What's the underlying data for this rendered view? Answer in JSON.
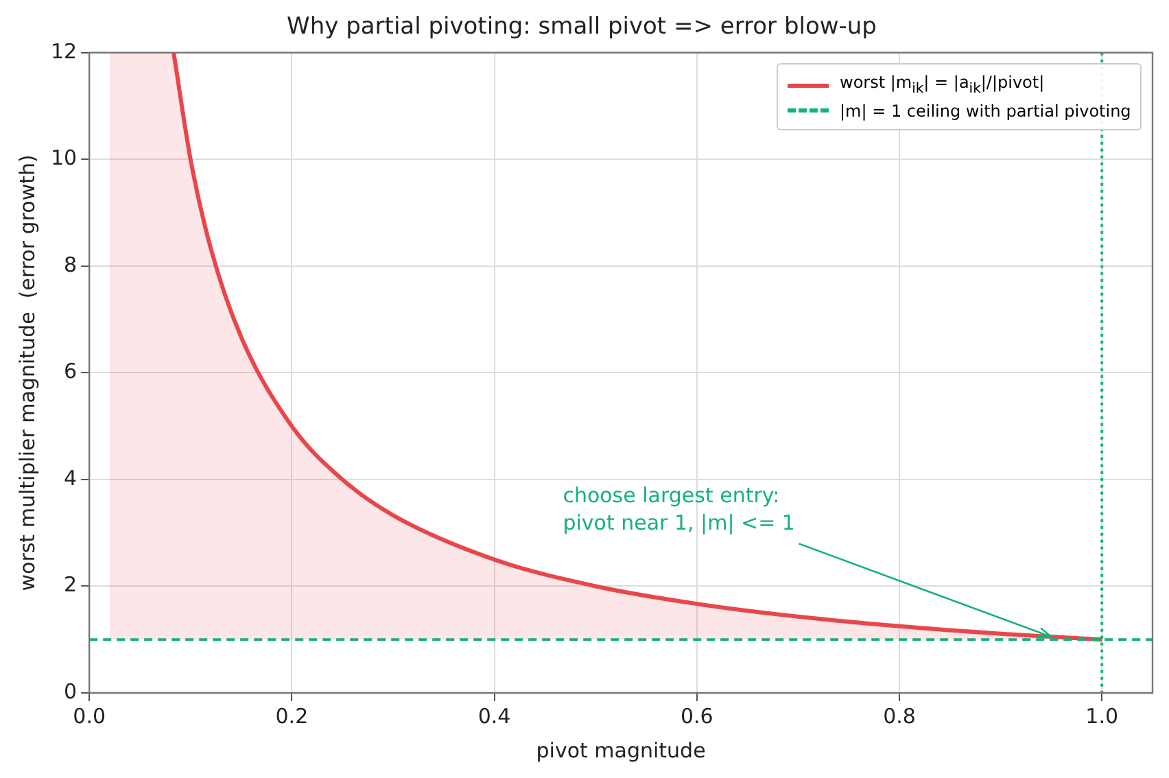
{
  "chart_data": {
    "type": "line",
    "title": "Why partial pivoting: small pivot => error blow-up",
    "xlabel": "pivot magnitude",
    "ylabel": "worst multiplier magnitude  (error growth)",
    "x": [
      0.02,
      0.0833,
      0.1,
      0.12,
      0.15,
      0.2,
      0.25,
      0.3,
      0.4,
      0.5,
      0.6,
      0.7,
      0.8,
      0.9,
      1.0
    ],
    "series": [
      {
        "name": "worst |m$_{ik}$| = |a$_{ik}$|/|pivot|",
        "color": "#e8474b",
        "values": [
          null,
          12,
          10,
          8.33,
          6.67,
          5,
          4,
          3.33,
          2.5,
          2,
          1.67,
          1.43,
          1.25,
          1.11,
          1
        ],
        "lower": [
          1,
          1,
          1,
          1,
          1,
          1,
          1,
          1,
          1,
          1,
          1,
          1,
          1,
          1,
          1
        ],
        "upper": [
          12,
          12,
          10,
          8.33,
          6.67,
          5,
          4,
          3.33,
          2.5,
          2,
          1.67,
          1.43,
          1.25,
          1.11,
          1
        ]
      }
    ],
    "ref_lines": [
      {
        "axis": "y",
        "value": 1,
        "label": "|m| = 1 ceiling with partial pivoting",
        "color": "#14b27b",
        "line_style": "dashed"
      },
      {
        "axis": "x",
        "value": 1,
        "color": "#14b27b",
        "line_style": "dotted"
      }
    ],
    "annotations": [
      {
        "text": "choose largest entry:\npivot near 1, |m| <= 1",
        "x": 0.95,
        "y": 1.05
      }
    ],
    "xlim": [
      0,
      1.05
    ],
    "ylim": [
      0,
      12
    ],
    "xticks": [
      {
        "value": 0,
        "label": "0.0"
      },
      {
        "value": 0.2,
        "label": "0.2"
      },
      {
        "value": 0.4,
        "label": "0.4"
      },
      {
        "value": 0.6,
        "label": "0.6"
      },
      {
        "value": 0.8,
        "label": "0.8"
      },
      {
        "value": 1,
        "label": "1.0"
      }
    ],
    "yticks": [
      0,
      2,
      4,
      6,
      8,
      10,
      12
    ],
    "grid": true,
    "legend": "top right",
    "marker": "none",
    "line_style": "solid"
  }
}
